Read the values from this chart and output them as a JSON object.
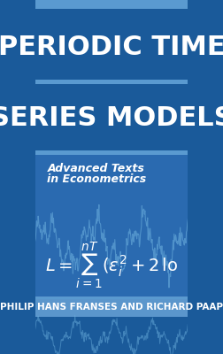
{
  "bg_top": "#3a7abf",
  "bg_dark": "#1a5a9a",
  "bg_mid": "#2a6ab0",
  "bg_bottom": "#1e5fa5",
  "bg_very_top": "#5a9ad0",
  "white": "#ffffff",
  "light_blue_line": "#6aaedd",
  "author_bg": "#5b96cc",
  "title_line1": "PERIODIC TIME",
  "title_line2": "SERIES MODELS",
  "subtitle1": "Advanced Texts",
  "subtitle2": "in Econometrics",
  "formula": "$L = \\sum_{i=1}^{nT}(\\varepsilon_i^2 + 2\\,\\mathrm{lo}$",
  "author": "PHILIP HANS FRANSES AND RICHARD PAAP",
  "title_fontsize": 22,
  "subtitle_fontsize": 9,
  "author_fontsize": 7.5,
  "formula_fontsize": 14
}
